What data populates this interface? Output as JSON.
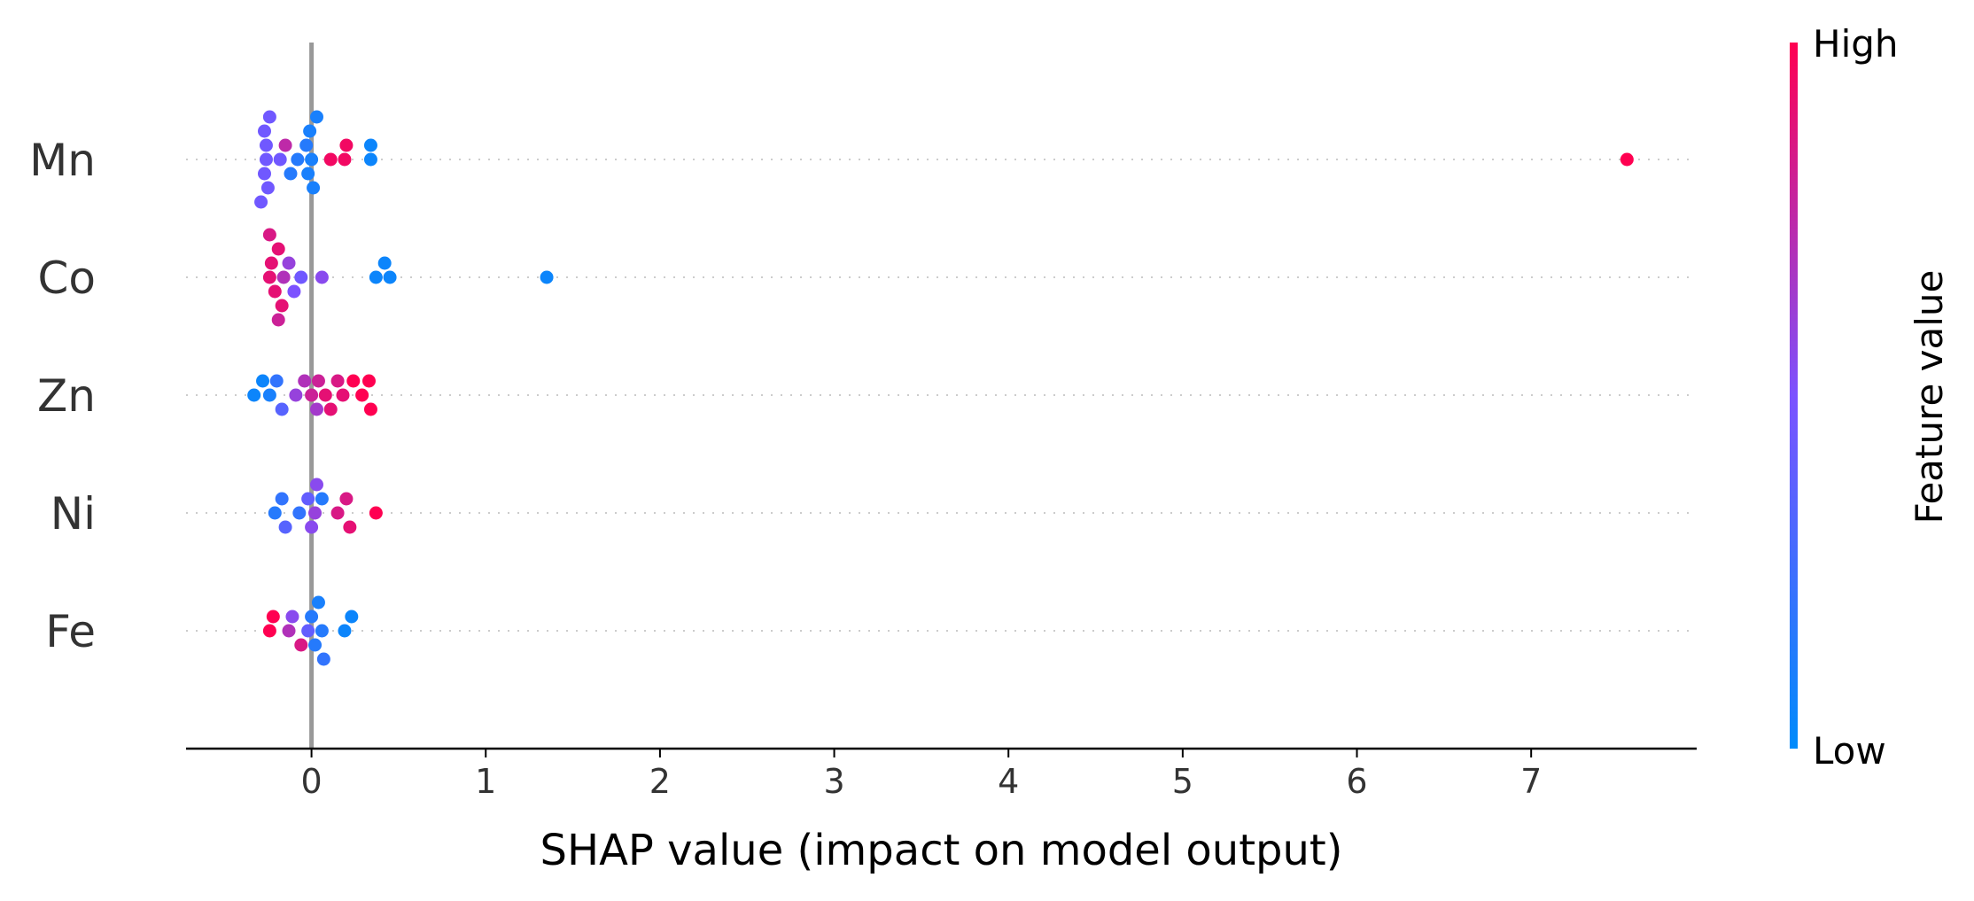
{
  "chart_data": {
    "type": "scatter",
    "title": "",
    "xlabel": "SHAP value (impact on model output)",
    "ylabel": "",
    "xlim": [
      -0.72,
      7.95
    ],
    "xticks": [
      0,
      1,
      2,
      3,
      4,
      5,
      6,
      7
    ],
    "grid": false,
    "colormap": {
      "low": "#008bfb",
      "mid": "#7c52ff",
      "high": "#ff0051"
    },
    "colorbar": {
      "title": "Feature value",
      "high_label": "High",
      "low_label": "Low"
    },
    "features": [
      {
        "name": "Mn",
        "points": [
          {
            "x": -0.26,
            "v": 0.45
          },
          {
            "x": -0.26,
            "v": 0.45
          },
          {
            "x": -0.27,
            "v": 0.45
          },
          {
            "x": -0.27,
            "v": 0.45
          },
          {
            "x": -0.25,
            "v": 0.45
          },
          {
            "x": -0.24,
            "v": 0.45
          },
          {
            "x": -0.29,
            "v": 0.45
          },
          {
            "x": -0.18,
            "v": 0.45
          },
          {
            "x": -0.15,
            "v": 0.75
          },
          {
            "x": -0.12,
            "v": 0.15
          },
          {
            "x": -0.08,
            "v": 0.15
          },
          {
            "x": -0.03,
            "v": 0.15
          },
          {
            "x": -0.02,
            "v": 0.1
          },
          {
            "x": -0.01,
            "v": 0.1
          },
          {
            "x": 0.0,
            "v": 0.1
          },
          {
            "x": 0.01,
            "v": 0.1
          },
          {
            "x": 0.03,
            "v": 0.1
          },
          {
            "x": 0.11,
            "v": 0.95
          },
          {
            "x": 0.19,
            "v": 0.95
          },
          {
            "x": 0.2,
            "v": 0.95
          },
          {
            "x": 0.34,
            "v": 0.05
          },
          {
            "x": 0.34,
            "v": 0.05
          },
          {
            "x": 7.55,
            "v": 1.0
          }
        ]
      },
      {
        "name": "Co",
        "points": [
          {
            "x": -0.24,
            "v": 0.9
          },
          {
            "x": -0.23,
            "v": 0.9
          },
          {
            "x": -0.21,
            "v": 0.9
          },
          {
            "x": -0.19,
            "v": 0.9
          },
          {
            "x": -0.17,
            "v": 0.9
          },
          {
            "x": -0.24,
            "v": 0.85
          },
          {
            "x": -0.19,
            "v": 0.8
          },
          {
            "x": -0.16,
            "v": 0.7
          },
          {
            "x": -0.13,
            "v": 0.6
          },
          {
            "x": -0.1,
            "v": 0.5
          },
          {
            "x": -0.06,
            "v": 0.45
          },
          {
            "x": 0.06,
            "v": 0.55
          },
          {
            "x": 0.37,
            "v": 0.05
          },
          {
            "x": 0.42,
            "v": 0.05
          },
          {
            "x": 0.45,
            "v": 0.05
          },
          {
            "x": 1.35,
            "v": 0.05
          }
        ]
      },
      {
        "name": "Zn",
        "points": [
          {
            "x": -0.33,
            "v": 0.05
          },
          {
            "x": -0.28,
            "v": 0.05
          },
          {
            "x": -0.24,
            "v": 0.1
          },
          {
            "x": -0.2,
            "v": 0.2
          },
          {
            "x": -0.17,
            "v": 0.35
          },
          {
            "x": -0.09,
            "v": 0.6
          },
          {
            "x": -0.04,
            "v": 0.7
          },
          {
            "x": 0.0,
            "v": 0.8
          },
          {
            "x": 0.03,
            "v": 0.65
          },
          {
            "x": 0.04,
            "v": 0.8
          },
          {
            "x": 0.08,
            "v": 0.9
          },
          {
            "x": 0.11,
            "v": 0.9
          },
          {
            "x": 0.15,
            "v": 0.85
          },
          {
            "x": 0.18,
            "v": 0.9
          },
          {
            "x": 0.24,
            "v": 1.0
          },
          {
            "x": 0.29,
            "v": 1.0
          },
          {
            "x": 0.33,
            "v": 1.0
          },
          {
            "x": 0.34,
            "v": 1.0
          }
        ]
      },
      {
        "name": "Ni",
        "points": [
          {
            "x": -0.21,
            "v": 0.15
          },
          {
            "x": -0.17,
            "v": 0.2
          },
          {
            "x": -0.15,
            "v": 0.35
          },
          {
            "x": -0.07,
            "v": 0.2
          },
          {
            "x": -0.02,
            "v": 0.4
          },
          {
            "x": 0.0,
            "v": 0.55
          },
          {
            "x": 0.02,
            "v": 0.6
          },
          {
            "x": 0.03,
            "v": 0.55
          },
          {
            "x": 0.06,
            "v": 0.15
          },
          {
            "x": 0.15,
            "v": 0.85
          },
          {
            "x": 0.2,
            "v": 0.85
          },
          {
            "x": 0.22,
            "v": 0.9
          },
          {
            "x": 0.37,
            "v": 1.0
          }
        ]
      },
      {
        "name": "Fe",
        "points": [
          {
            "x": -0.24,
            "v": 1.0
          },
          {
            "x": -0.22,
            "v": 1.0
          },
          {
            "x": -0.13,
            "v": 0.7
          },
          {
            "x": -0.11,
            "v": 0.55
          },
          {
            "x": -0.06,
            "v": 0.85
          },
          {
            "x": -0.02,
            "v": 0.4
          },
          {
            "x": 0.0,
            "v": 0.15
          },
          {
            "x": 0.02,
            "v": 0.15
          },
          {
            "x": 0.04,
            "v": 0.1
          },
          {
            "x": 0.06,
            "v": 0.15
          },
          {
            "x": 0.07,
            "v": 0.2
          },
          {
            "x": 0.19,
            "v": 0.05
          },
          {
            "x": 0.23,
            "v": 0.05
          }
        ]
      }
    ]
  }
}
